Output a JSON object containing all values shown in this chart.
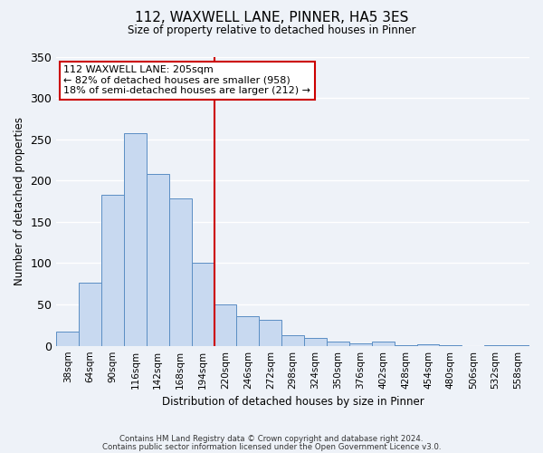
{
  "title": "112, WAXWELL LANE, PINNER, HA5 3ES",
  "subtitle": "Size of property relative to detached houses in Pinner",
  "xlabel": "Distribution of detached houses by size in Pinner",
  "ylabel": "Number of detached properties",
  "bin_labels": [
    "38sqm",
    "64sqm",
    "90sqm",
    "116sqm",
    "142sqm",
    "168sqm",
    "194sqm",
    "220sqm",
    "246sqm",
    "272sqm",
    "298sqm",
    "324sqm",
    "350sqm",
    "376sqm",
    "402sqm",
    "428sqm",
    "454sqm",
    "480sqm",
    "506sqm",
    "532sqm",
    "558sqm"
  ],
  "bar_values": [
    17,
    76,
    183,
    257,
    208,
    178,
    100,
    50,
    36,
    31,
    13,
    10,
    5,
    3,
    5,
    1,
    2,
    1,
    0,
    1,
    1
  ],
  "bar_color": "#c8d9f0",
  "bar_edge_color": "#5b8ec4",
  "vline_x": 6.5,
  "vline_color": "#cc0000",
  "ylim": [
    0,
    350
  ],
  "yticks": [
    0,
    50,
    100,
    150,
    200,
    250,
    300,
    350
  ],
  "annotation_title": "112 WAXWELL LANE: 205sqm",
  "annotation_line1": "← 82% of detached houses are smaller (958)",
  "annotation_line2": "18% of semi-detached houses are larger (212) →",
  "annotation_box_color": "#cc0000",
  "footer_line1": "Contains HM Land Registry data © Crown copyright and database right 2024.",
  "footer_line2": "Contains public sector information licensed under the Open Government Licence v3.0.",
  "background_color": "#eef2f8",
  "grid_color": "#ffffff"
}
